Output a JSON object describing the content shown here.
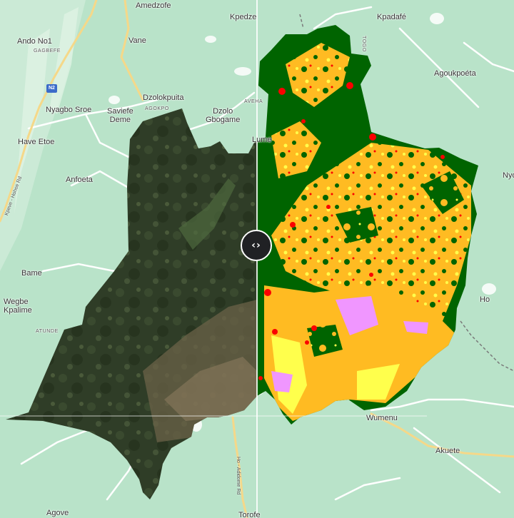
{
  "map": {
    "base_color": "#b9e3c9",
    "classes": {
      "forest": "#006400",
      "cropland": "#ffbb22",
      "grassland": "#ffff4c",
      "built_up": "#fa0000",
      "bare": "#f096ff"
    },
    "swipe_handle_icon": "‹›",
    "places": {
      "amedzofe": "Amedzofe",
      "kpedze": "Kpedze",
      "kpadafe": "Kpadafé",
      "ando_no1": "Ando No1",
      "gagbefe": "GAGBEFE",
      "vane": "Vane",
      "togo": "TOGO",
      "agoukpoeta": "Agoukpoéta",
      "dzolokpuita": "Dzolokpuita",
      "agokpo": "AGOKPO",
      "aveha": "AVEHA",
      "nyagbo_sroe": "Nyagbo Sroe",
      "saviefe_deme": "Saviefe\nDeme",
      "dzolo_gbogame": "Dzolo\nGbogame",
      "have_etoe": "Have Etoe",
      "lume": "Lume",
      "anfoeta": "Anfoeta",
      "nyo": "Nyo",
      "bame": "Bame",
      "wegbe_kpalime": "Wegbe\nKpalime",
      "atunde": "ATUNDE",
      "ho": "Ho",
      "wumenu": "Wumenu",
      "akuete": "Akuete",
      "agove": "Agove",
      "torofe": "Torofe"
    },
    "roads": {
      "n2": "N2",
      "adidome_rd": "Ho - Adidome Rd",
      "mpraeso_rd": "Kpeve - Hohoe Rd"
    }
  }
}
